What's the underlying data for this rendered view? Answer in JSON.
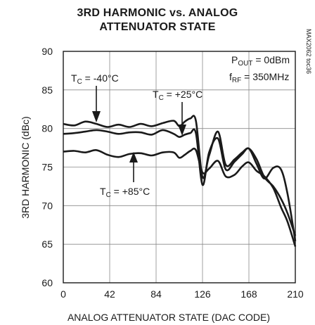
{
  "title": {
    "line1": "3RD HARMONIC vs. ANALOG",
    "line2": "ATTENUATOR STATE"
  },
  "figure_code": "MAX2062 toc36",
  "chart_data": {
    "type": "line",
    "xlabel": "ANALOG ATTENUATOR STATE (DAC CODE)",
    "ylabel": "3RD HARMONIC (dBc)",
    "xlim": [
      0,
      210
    ],
    "ylim": [
      60,
      90
    ],
    "xticks": [
      0,
      42,
      84,
      126,
      168,
      210
    ],
    "yticks": [
      60,
      65,
      70,
      75,
      80,
      85,
      90
    ],
    "grid": true,
    "conditions": {
      "pout": {
        "main": "P",
        "sub": "OUT",
        "rest": " = 0dBm"
      },
      "frf": {
        "main": "f",
        "sub": "RF",
        "rest": " = 350MHz"
      }
    },
    "series": [
      {
        "name": "TC = -40°C",
        "label": {
          "main": "T",
          "sub": "C",
          "rest": " = -40°C"
        },
        "x": [
          0,
          10,
          20,
          30,
          40,
          50,
          60,
          70,
          80,
          90,
          100,
          105,
          110,
          115,
          120,
          126,
          132,
          140,
          147,
          155,
          162,
          168,
          175,
          182,
          190,
          197,
          203,
          210
        ],
        "y": [
          80.6,
          80.4,
          80.9,
          80.6,
          80.2,
          80.5,
          80.2,
          80.6,
          80.3,
          80.7,
          81.0,
          80.3,
          80.9,
          81.3,
          81.0,
          73.7,
          76.5,
          79.6,
          75.3,
          76.0,
          76.9,
          77.4,
          76.0,
          73.7,
          72.5,
          70.9,
          69.0,
          66.1
        ]
      },
      {
        "name": "TC = +25°C",
        "label": {
          "main": "T",
          "sub": "C",
          "rest": " = +25°C"
        },
        "x": [
          0,
          10,
          20,
          30,
          40,
          50,
          60,
          70,
          80,
          90,
          100,
          105,
          110,
          115,
          120,
          126,
          132,
          140,
          147,
          155,
          162,
          168,
          175,
          182,
          190,
          197,
          203,
          210
        ],
        "y": [
          79.3,
          79.4,
          79.6,
          79.8,
          79.6,
          79.3,
          79.5,
          79.5,
          79.2,
          79.8,
          79.3,
          78.9,
          79.2,
          79.4,
          79.4,
          72.7,
          76.9,
          78.7,
          74.7,
          75.7,
          76.7,
          77.4,
          75.4,
          73.5,
          74.9,
          74.7,
          71.5,
          65.4
        ]
      },
      {
        "name": "TC = +85°C",
        "label": {
          "main": "T",
          "sub": "C",
          "rest": " = +85°C"
        },
        "x": [
          0,
          10,
          20,
          30,
          40,
          50,
          60,
          70,
          80,
          90,
          100,
          105,
          110,
          115,
          120,
          126,
          132,
          140,
          147,
          155,
          162,
          168,
          175,
          182,
          190,
          197,
          203,
          210
        ],
        "y": [
          77.0,
          77.1,
          76.9,
          77.2,
          76.6,
          76.3,
          76.7,
          76.8,
          76.5,
          76.9,
          76.9,
          76.2,
          76.6,
          77.1,
          77.2,
          74.3,
          74.8,
          75.8,
          73.8,
          74.0,
          75.1,
          75.6,
          74.5,
          73.8,
          72.3,
          69.8,
          67.9,
          64.7
        ]
      }
    ]
  }
}
